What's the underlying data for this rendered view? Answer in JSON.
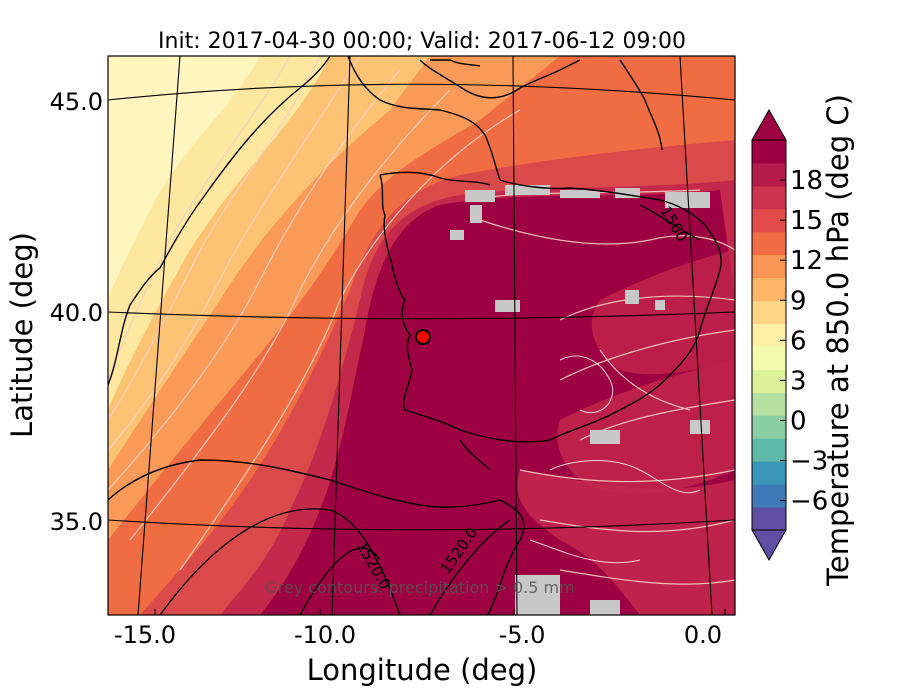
{
  "title": "Init: 2017-04-30 00:00; Valid: 2017-06-12 09:00",
  "axes": {
    "xlabel": "Longitude (deg)",
    "ylabel": "Latitude (deg)",
    "xticks": [
      "-15.0",
      "-10.0",
      "-5.0",
      "0.0"
    ],
    "yticks": [
      "45.0",
      "40.0",
      "35.0"
    ]
  },
  "colorbar": {
    "label": "Temperature at 850.0 hPa (deg C)",
    "ticks": [
      "18",
      "15",
      "12",
      "9",
      "6",
      "3",
      "0",
      "−3",
      "−6"
    ],
    "extend": "both",
    "colors": [
      "#5e4fa2",
      "#3f7ab6",
      "#3a95b8",
      "#5fb9a7",
      "#8acfa4",
      "#b4e1a1",
      "#dcf09a",
      "#f3faad",
      "#fef0a4",
      "#fed585",
      "#fdb668",
      "#f99555",
      "#f06d43",
      "#e14c4a",
      "#cc334d",
      "#b41a4b",
      "#9e0142"
    ]
  },
  "annotation": "Grey contours: precipitation > 0.5 mm",
  "contour_labels": [
    "1520.0",
    "1520.0",
    "1560"
  ],
  "marker": {
    "color": "#ff0000",
    "lat": 39.3,
    "lon": -7.6
  },
  "field_colors": {
    "hot": "#9e0142",
    "warm": "#d53e4f",
    "mid": "#f46d43",
    "cool": "#fdae61",
    "cooler": "#fee08b",
    "coolest": "#ffffbf"
  }
}
